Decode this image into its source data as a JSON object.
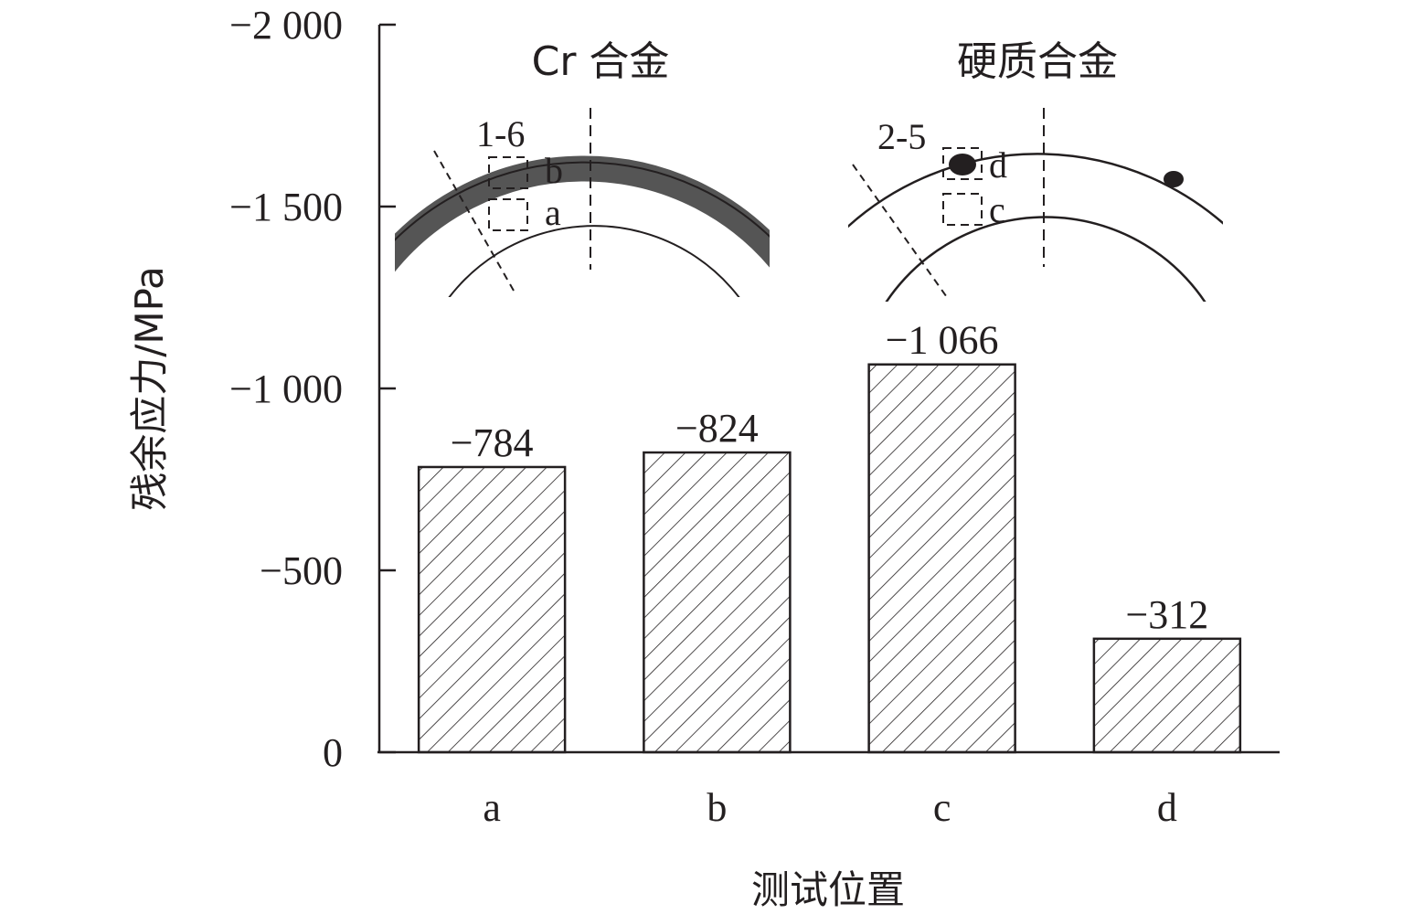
{
  "chart_data": {
    "type": "bar",
    "xlabel": "测试位置",
    "ylabel": "残余应力/MPa",
    "categories": [
      "a",
      "b",
      "c",
      "d"
    ],
    "values": [
      -784,
      -824,
      -1066,
      -312
    ],
    "value_labels": [
      "−784",
      "−824",
      "−1 066",
      "−312"
    ],
    "ylim": [
      0,
      -2000
    ],
    "y_axis_inverted": true,
    "yticks": [
      0,
      -500,
      -1000,
      -1500,
      -2000
    ],
    "ytick_labels": [
      "0",
      "−500",
      "−1 000",
      "−1 500",
      "−2 000"
    ],
    "bar_fill": "diagonal-hatch",
    "grid": false,
    "legend": "none"
  },
  "insets": [
    {
      "title": "Cr 合金",
      "sample_label": "1-6",
      "box_labels": [
        "b",
        "a"
      ]
    },
    {
      "title": "硬质合金",
      "sample_label": "2-5",
      "box_labels": [
        "d",
        "c"
      ]
    }
  ],
  "colors": {
    "ink": "#231f20",
    "coating_band": "#555555",
    "background": "#ffffff"
  }
}
